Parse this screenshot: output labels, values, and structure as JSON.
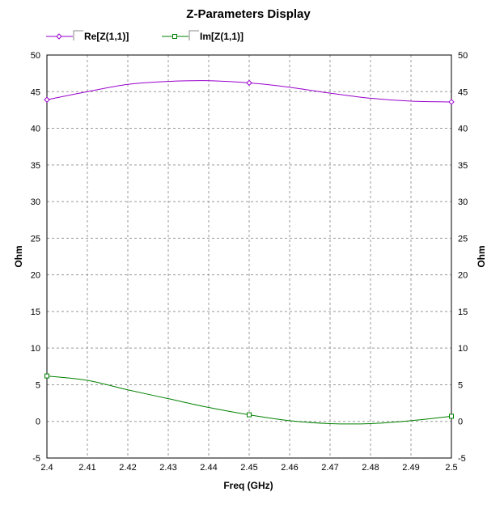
{
  "chart_data": {
    "type": "line",
    "title": "Z-Parameters Display",
    "xlabel": "Freq (GHz)",
    "ylabel": "Ohm",
    "ylabel_right": "Ohm",
    "xlim": [
      2.4,
      2.5
    ],
    "ylim": [
      -5,
      50
    ],
    "xticks": [
      "2.4",
      "2.41",
      "2.42",
      "2.43",
      "2.44",
      "2.45",
      "2.46",
      "2.47",
      "2.48",
      "2.49",
      "2.5"
    ],
    "yticks": [
      "50",
      "45",
      "40",
      "35",
      "30",
      "25",
      "20",
      "15",
      "10",
      "5",
      "0",
      "-5"
    ],
    "grid": true,
    "legend_position": "top-left",
    "x": [
      2.4,
      2.41,
      2.42,
      2.43,
      2.44,
      2.45,
      2.46,
      2.47,
      2.48,
      2.49,
      2.5
    ],
    "series": [
      {
        "name": "Re[Z(1,1)]",
        "color": "#9900cc",
        "marker": "diamond",
        "marker_x": [
          2.4,
          2.45,
          2.5
        ],
        "values": [
          43.9,
          45.0,
          46.0,
          46.4,
          46.5,
          46.2,
          45.6,
          44.8,
          44.1,
          43.7,
          43.6
        ]
      },
      {
        "name": "Im[Z(1,1)]",
        "color": "#008000",
        "marker": "square",
        "marker_x": [
          2.4,
          2.45,
          2.5
        ],
        "values": [
          6.2,
          5.6,
          4.3,
          3.1,
          1.9,
          0.9,
          0.1,
          -0.3,
          -0.3,
          0.1,
          0.7
        ]
      }
    ]
  }
}
